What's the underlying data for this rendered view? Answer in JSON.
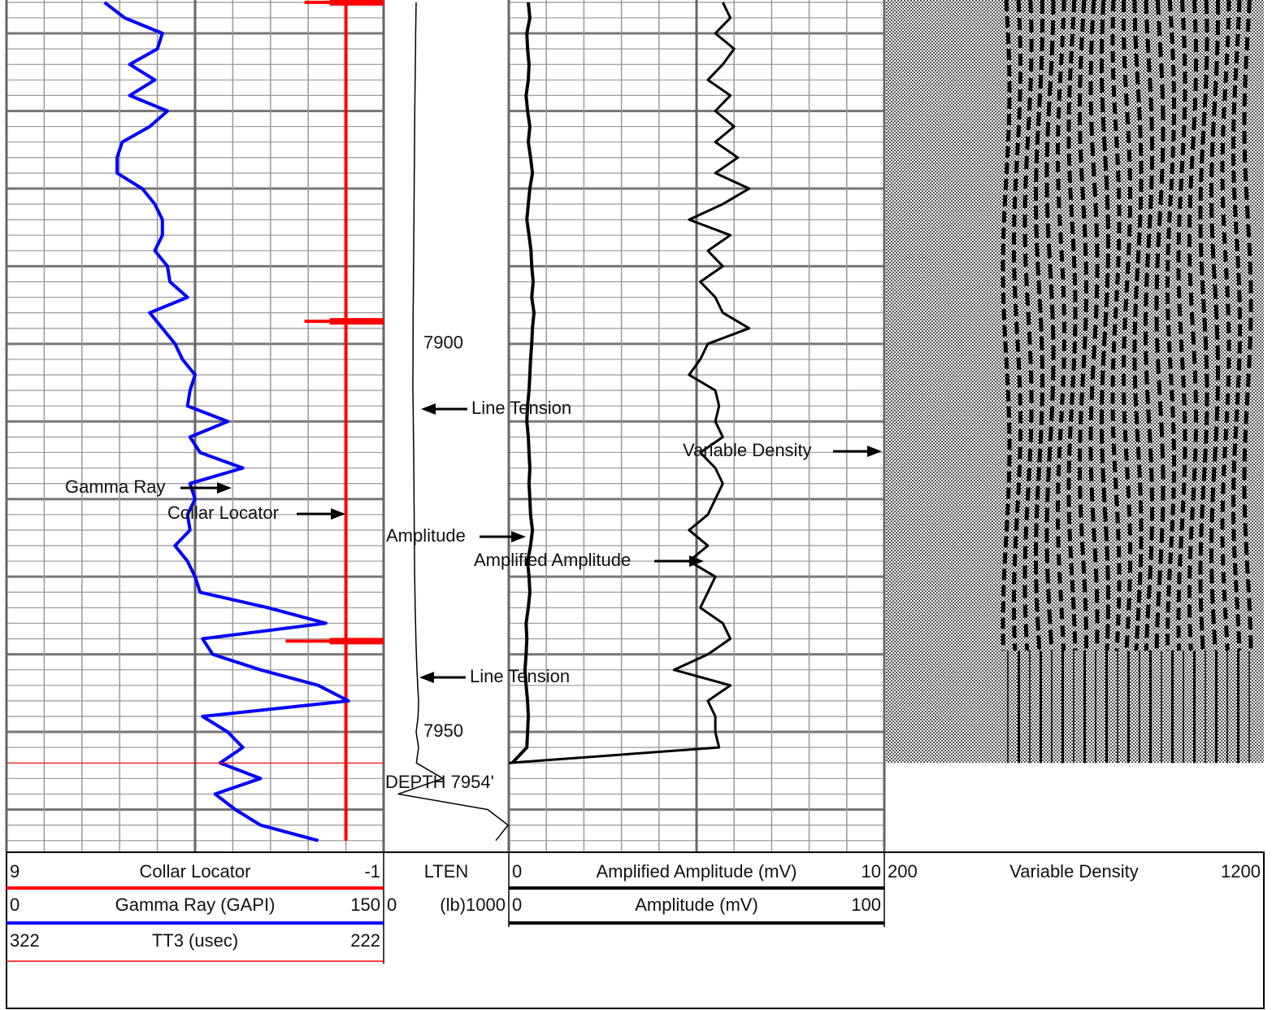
{
  "chart_data": {
    "type": "well-log",
    "ylim": [
      7855.7,
      7965.5
    ],
    "depth": [
      7856,
      7858,
      7860,
      7862,
      7864,
      7866,
      7868,
      7870,
      7872,
      7874,
      7876,
      7878,
      7880,
      7882,
      7884,
      7886,
      7888,
      7890,
      7892,
      7894,
      7896,
      7898,
      7900,
      7902,
      7904,
      7906,
      7908,
      7910,
      7912,
      7914,
      7916,
      7918,
      7920,
      7922,
      7924,
      7926,
      7928,
      7930,
      7932,
      7934,
      7936,
      7938,
      7940,
      7942,
      7944,
      7946,
      7948,
      7950,
      7952,
      7954,
      7956,
      7958,
      7960,
      7962,
      7964
    ],
    "depth_ticks": [
      7900,
      7950
    ],
    "total_depth": 7954,
    "total_depth_label": "DEPTH 7954'",
    "annotations": [
      "Gamma Ray",
      "Collar Locator",
      "Line Tension",
      "Amplitude",
      "Amplified Amplitude",
      "Line Tension",
      "Variable Density"
    ],
    "tracks": [
      {
        "grid": true,
        "curves": [
          {
            "name": "Collar Locator",
            "color": "#ff0000",
            "xlim": [
              9,
              -1
            ],
            "baseline": 0,
            "spike_depths": [
              7856,
              7897.1,
              7938.3
            ],
            "spike_values": [
              1.1,
              1.1,
              1.6
            ]
          },
          {
            "name": "Gamma Ray (GAPI)",
            "color": "#0000ff",
            "xlim": [
              0,
              150
            ],
            "values": [
              39,
              47,
              62,
              60,
              49,
              59,
              49,
              64,
              57,
              46,
              44,
              44,
              54,
              59,
              62,
              62,
              59,
              64,
              65,
              72,
              57,
              62,
              67,
              70,
              75,
              73,
              72,
              88,
              73,
              77,
              94,
              73,
              75,
              72,
              73,
              67,
              72,
              75,
              77,
              104,
              127,
              78,
              82,
              101,
              124,
              136,
              78,
              88,
              94,
              85,
              101,
              83,
              91,
              101,
              124
            ]
          },
          {
            "name": "TT3 (usec)",
            "color": "#ff0000",
            "xlim": [
              322,
              222
            ]
          }
        ]
      },
      {
        "grid": false,
        "curves": [
          {
            "name": "LTEN",
            "unit": "(lb)",
            "color": "#000000",
            "xlim": [
              0,
              1000
            ],
            "values": [
              260,
              258,
              256,
              255,
              253,
              252,
              250,
              249,
              248,
              247,
              246,
              245,
              244,
              243,
              242,
              241,
              240,
              239,
              238,
              237,
              236,
              236,
              235,
              235,
              234,
              234,
              236,
              237,
              238,
              240,
              241,
              242,
              243,
              244,
              245,
              246,
              247,
              248,
              250,
              252,
              255,
              258,
              262,
              266,
              272,
              279,
              275,
              260,
              279,
              262,
              474,
              117,
              831,
              994,
              896
            ]
          }
        ]
      },
      {
        "grid": true,
        "curves": [
          {
            "name": "Amplified Amplitude (mV)",
            "color": "#000000",
            "xlim": [
              0,
              10
            ],
            "values": [
              5.7,
              5.9,
              5.5,
              6.0,
              5.7,
              5.3,
              5.9,
              5.5,
              6.0,
              5.5,
              6.1,
              5.5,
              6.4,
              5.7,
              4.8,
              5.9,
              5.3,
              5.7,
              5.1,
              5.5,
              5.7,
              6.4,
              5.3,
              5.1,
              4.8,
              5.5,
              5.6,
              5.5,
              5.7,
              5.1,
              5.5,
              5.7,
              5.5,
              5.3,
              4.8,
              5.3,
              4.8,
              5.5,
              5.3,
              5.1,
              5.7,
              5.9,
              5.3,
              4.4,
              5.9,
              5.3,
              5.5,
              5.5,
              5.6,
              0,
              null,
              null,
              null,
              null,
              null
            ]
          },
          {
            "name": "Amplitude (mV)",
            "color": "#000000",
            "xlim": [
              0,
              100
            ],
            "values": [
              5.2,
              5.6,
              4.8,
              5.0,
              5.4,
              5.2,
              4.6,
              5.0,
              5.6,
              5.2,
              5.8,
              6.3,
              5.6,
              5.2,
              4.8,
              5.4,
              5.9,
              6.1,
              6.5,
              6.1,
              6.7,
              6.3,
              6.1,
              5.8,
              5.6,
              5.4,
              5.0,
              4.8,
              5.2,
              5.4,
              5.6,
              5.4,
              5.6,
              5.8,
              6.3,
              5.8,
              5.0,
              5.4,
              5.6,
              5.2,
              4.6,
              4.8,
              4.6,
              4.3,
              4.6,
              5.0,
              5.2,
              5.0,
              4.8,
              0.9,
              null,
              null,
              null,
              null,
              null
            ]
          }
        ]
      },
      {
        "grid": false,
        "curves": [
          {
            "name": "Variable Density",
            "color": "#000000",
            "xlim": [
              200,
              1200
            ]
          }
        ]
      }
    ]
  }
}
